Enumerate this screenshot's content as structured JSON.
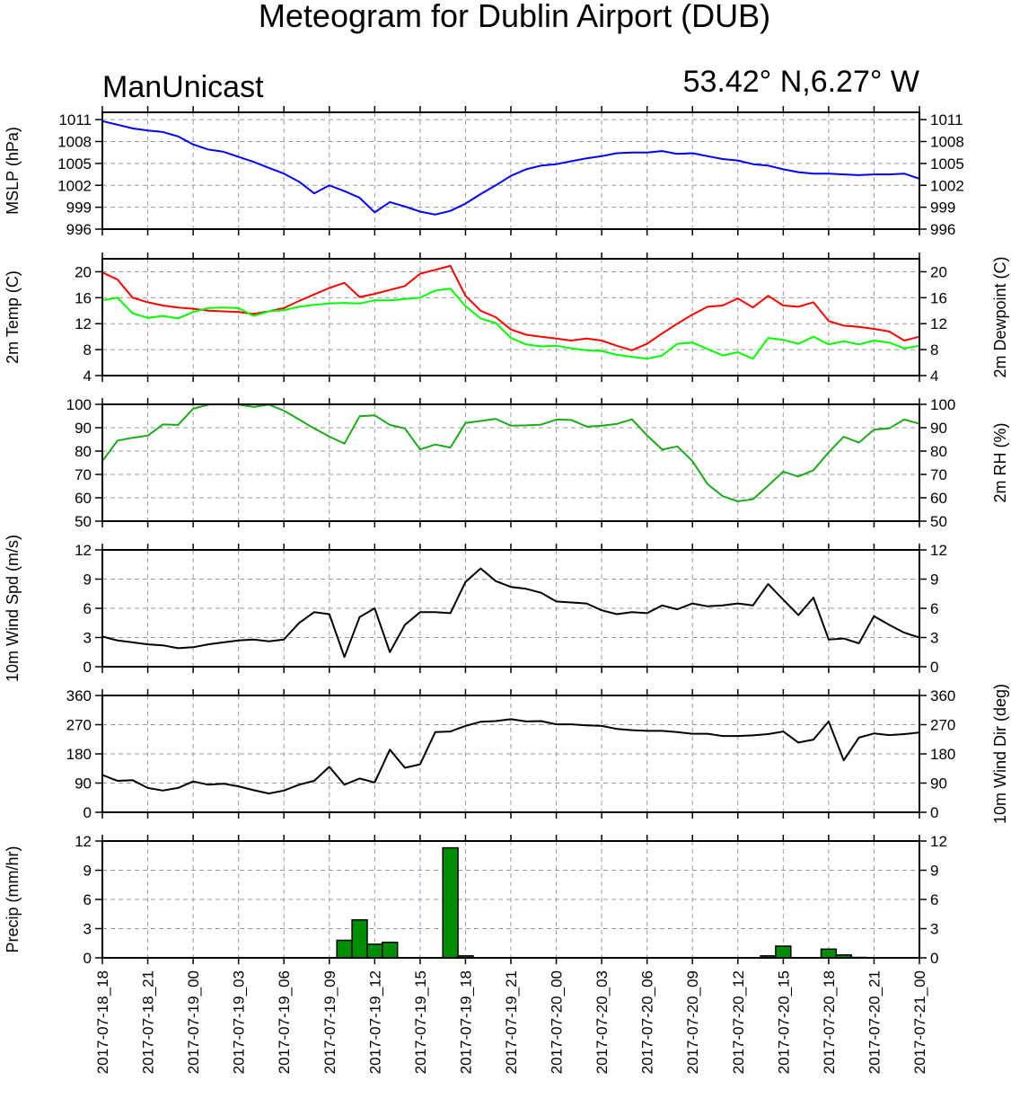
{
  "title": "Meteogram for Dublin Airport (DUB)",
  "model": "ManUnicast",
  "location": "53.42° N,6.27° W",
  "x_tick_labels": [
    "2017-07-18_18",
    "2017-07-18_21",
    "2017-07-19_00",
    "2017-07-19_03",
    "2017-07-19_06",
    "2017-07-19_09",
    "2017-07-19_12",
    "2017-07-19_15",
    "2017-07-19_18",
    "2017-07-19_21",
    "2017-07-20_00",
    "2017-07-20_03",
    "2017-07-20_06",
    "2017-07-20_09",
    "2017-07-20_12",
    "2017-07-20_15",
    "2017-07-20_18",
    "2017-07-20_21",
    "2017-07-21_00"
  ],
  "chart_data": [
    {
      "type": "line",
      "ylabel": "MSLP (hPa)",
      "ylabel_right": "",
      "ylim": [
        996,
        1012
      ],
      "yticks": [
        996,
        999,
        1002,
        1005,
        1008,
        1011
      ],
      "x_hours": [
        0,
        1,
        2,
        3,
        4,
        5,
        6,
        7,
        8,
        9,
        10,
        11,
        12,
        13,
        14,
        15,
        16,
        17,
        18,
        19,
        20,
        21,
        22,
        23,
        24,
        25,
        26,
        27,
        28,
        29,
        30,
        31,
        32,
        33,
        34,
        35,
        36,
        37,
        38,
        39,
        40,
        41,
        42,
        43,
        44,
        45,
        46,
        47,
        48,
        49,
        50,
        51,
        52,
        53,
        54
      ],
      "series": [
        {
          "color": "#0000ff",
          "values": [
            1010.8,
            1010.3,
            1009.8,
            1009.5,
            1009.3,
            1008.7,
            1007.6,
            1006.9,
            1006.6,
            1005.9,
            1005.2,
            1004.4,
            1003.6,
            1002.5,
            1000.9,
            1002.0,
            1001.2,
            1000.3,
            998.3,
            999.7,
            999.1,
            998.4,
            998.0,
            998.5,
            999.5,
            1000.8,
            1002.0,
            1003.3,
            1004.2,
            1004.7,
            1004.9,
            1005.3,
            1005.7,
            1006.0,
            1006.4,
            1006.5,
            1006.5,
            1006.7,
            1006.3,
            1006.4,
            1006.0,
            1005.6,
            1005.4,
            1004.9,
            1004.7,
            1004.2,
            1003.8,
            1003.6,
            1003.6,
            1003.5,
            1003.4,
            1003.5,
            1003.5,
            1003.6,
            1002.9
          ]
        }
      ]
    },
    {
      "type": "line",
      "ylabel": "2m Temp (C)",
      "ylabel_right": "2m Dewpoint (C)",
      "ylim": [
        4,
        22
      ],
      "yticks": [
        4,
        8,
        12,
        16,
        20
      ],
      "x_hours": [
        0,
        1,
        2,
        3,
        4,
        5,
        6,
        7,
        8,
        9,
        10,
        11,
        12,
        13,
        14,
        15,
        16,
        17,
        18,
        19,
        20,
        21,
        22,
        23,
        24,
        25,
        26,
        27,
        28,
        29,
        30,
        31,
        32,
        33,
        34,
        35,
        36,
        37,
        38,
        39,
        40,
        41,
        42,
        43,
        44,
        45,
        46,
        47,
        48,
        49,
        50,
        51,
        52,
        53,
        54
      ],
      "series": [
        {
          "color": "#ff0000",
          "values": [
            19.9,
            18.8,
            16.0,
            15.3,
            14.8,
            14.5,
            14.3,
            14.0,
            13.9,
            13.8,
            13.5,
            13.9,
            14.4,
            15.5,
            16.5,
            17.5,
            18.3,
            16.1,
            16.6,
            17.2,
            17.8,
            19.7,
            20.3,
            20.9,
            16.3,
            14.0,
            13.0,
            11.1,
            10.3,
            10.0,
            9.7,
            9.4,
            9.7,
            9.4,
            8.6,
            7.9,
            8.9,
            10.5,
            12.0,
            13.4,
            14.6,
            14.8,
            15.9,
            14.5,
            16.3,
            14.8,
            14.6,
            15.3,
            12.4,
            11.7,
            11.5,
            11.2,
            10.8,
            9.4,
            10.0
          ]
        },
        {
          "color": "#00ff00",
          "values": [
            15.6,
            16.0,
            13.6,
            12.9,
            13.2,
            12.8,
            13.8,
            14.4,
            14.5,
            14.4,
            13.2,
            13.9,
            14.1,
            14.6,
            14.9,
            15.1,
            15.2,
            15.1,
            15.6,
            15.6,
            15.8,
            16.0,
            17.1,
            17.4,
            14.7,
            12.8,
            12.1,
            9.8,
            8.8,
            8.5,
            8.6,
            8.2,
            7.9,
            7.8,
            7.2,
            6.9,
            6.6,
            7.1,
            8.9,
            9.1,
            8.1,
            7.1,
            7.6,
            6.6,
            9.8,
            9.5,
            8.9,
            10.0,
            8.8,
            9.3,
            8.8,
            9.4,
            9.1,
            8.2,
            8.6
          ]
        }
      ]
    },
    {
      "type": "line",
      "ylabel": "",
      "ylabel_right": "2m RH (%)",
      "ylim": [
        50,
        100
      ],
      "yticks": [
        50,
        60,
        70,
        80,
        90,
        100
      ],
      "x_hours": [
        0,
        1,
        2,
        3,
        4,
        5,
        6,
        7,
        8,
        9,
        10,
        11,
        12,
        13,
        14,
        15,
        16,
        17,
        18,
        19,
        20,
        21,
        22,
        23,
        24,
        25,
        26,
        27,
        28,
        29,
        30,
        31,
        32,
        33,
        34,
        35,
        36,
        37,
        38,
        39,
        40,
        41,
        42,
        43,
        44,
        45,
        46,
        47,
        48,
        49,
        50,
        51,
        52,
        53,
        54
      ],
      "series": [
        {
          "color": "#1aaa1a",
          "values": [
            75.7,
            84.5,
            85.7,
            86.6,
            91.4,
            91.2,
            98.1,
            99.9,
            100,
            99.9,
            98.9,
            99.9,
            97.3,
            93.5,
            89.7,
            86.2,
            83.2,
            94.9,
            95.3,
            91.2,
            89.7,
            80.7,
            82.8,
            81.5,
            92.0,
            92.9,
            93.8,
            90.9,
            91.0,
            91.3,
            93.5,
            93.3,
            90.5,
            90.8,
            91.6,
            93.6,
            86.7,
            80.6,
            82.0,
            75.7,
            65.8,
            60.7,
            58.5,
            59.4,
            65.2,
            71.2,
            69.1,
            71.8,
            79.5,
            86.1,
            83.6,
            89.2,
            89.7,
            93.5,
            91.7
          ]
        }
      ]
    },
    {
      "type": "line",
      "ylabel": "10m Wind Spd (m/s)",
      "ylabel_right": "",
      "ylim": [
        0,
        12
      ],
      "yticks": [
        0,
        3,
        6,
        9,
        12
      ],
      "x_hours": [
        0,
        1,
        2,
        3,
        4,
        5,
        6,
        7,
        8,
        9,
        10,
        11,
        12,
        13,
        14,
        15,
        16,
        17,
        18,
        19,
        20,
        21,
        22,
        23,
        24,
        25,
        26,
        27,
        28,
        29,
        30,
        31,
        32,
        33,
        34,
        35,
        36,
        37,
        38,
        39,
        40,
        41,
        42,
        43,
        44,
        45,
        46,
        47,
        48,
        49,
        50,
        51,
        52,
        53,
        54
      ],
      "series": [
        {
          "color": "#000000",
          "values": [
            3.1,
            2.7,
            2.5,
            2.3,
            2.2,
            1.9,
            2.0,
            2.3,
            2.5,
            2.7,
            2.8,
            2.6,
            2.8,
            4.5,
            5.6,
            5.4,
            1.0,
            5.1,
            6.0,
            1.5,
            4.3,
            5.6,
            5.6,
            5.5,
            8.7,
            10.1,
            8.8,
            8.2,
            8.0,
            7.6,
            6.7,
            6.6,
            6.5,
            5.8,
            5.4,
            5.6,
            5.5,
            6.3,
            5.9,
            6.5,
            6.2,
            6.3,
            6.5,
            6.3,
            8.5,
            6.9,
            5.3,
            7.1,
            2.8,
            2.9,
            2.4,
            5.2,
            4.3,
            3.5,
            3.0
          ]
        }
      ]
    },
    {
      "type": "line",
      "ylabel": "",
      "ylabel_right": "10m Wind Dir (deg)",
      "ylim": [
        0,
        360
      ],
      "yticks": [
        0,
        90,
        180,
        270,
        360
      ],
      "x_hours": [
        0,
        1,
        2,
        3,
        4,
        5,
        6,
        7,
        8,
        9,
        10,
        11,
        12,
        13,
        14,
        15,
        16,
        17,
        18,
        19,
        20,
        21,
        22,
        23,
        24,
        25,
        26,
        27,
        28,
        29,
        30,
        31,
        32,
        33,
        34,
        35,
        36,
        37,
        38,
        39,
        40,
        41,
        42,
        43,
        44,
        45,
        46,
        47,
        48,
        49,
        50,
        51,
        52,
        53,
        54
      ],
      "series": [
        {
          "color": "#000000",
          "values": [
            115,
            97,
            99,
            75,
            67,
            75,
            95,
            85,
            88,
            80,
            68,
            58,
            67,
            85,
            97,
            140,
            85,
            104,
            92,
            193,
            137,
            148,
            247,
            249,
            266,
            279,
            281,
            287,
            280,
            281,
            271,
            271,
            268,
            266,
            257,
            253,
            251,
            251,
            247,
            242,
            242,
            235,
            235,
            237,
            241,
            249,
            215,
            224,
            280,
            160,
            230,
            243,
            238,
            241,
            246
          ]
        }
      ]
    },
    {
      "type": "bar",
      "ylabel": "Precip (mm/hr)",
      "ylabel_right": "",
      "ylim": [
        0,
        12
      ],
      "yticks": [
        0,
        3,
        6,
        9,
        12
      ],
      "bar_color": "#008f00",
      "bars": [
        {
          "hour": 16,
          "value": 1.8
        },
        {
          "hour": 17,
          "value": 3.9
        },
        {
          "hour": 18,
          "value": 1.4
        },
        {
          "hour": 19,
          "value": 1.6
        },
        {
          "hour": 23,
          "value": 11.3
        },
        {
          "hour": 24,
          "value": 0.2
        },
        {
          "hour": 44,
          "value": 0.2
        },
        {
          "hour": 45,
          "value": 1.2
        },
        {
          "hour": 48,
          "value": 0.9
        },
        {
          "hour": 49,
          "value": 0.3
        },
        {
          "hour": 50,
          "value": 0.05
        }
      ]
    }
  ]
}
